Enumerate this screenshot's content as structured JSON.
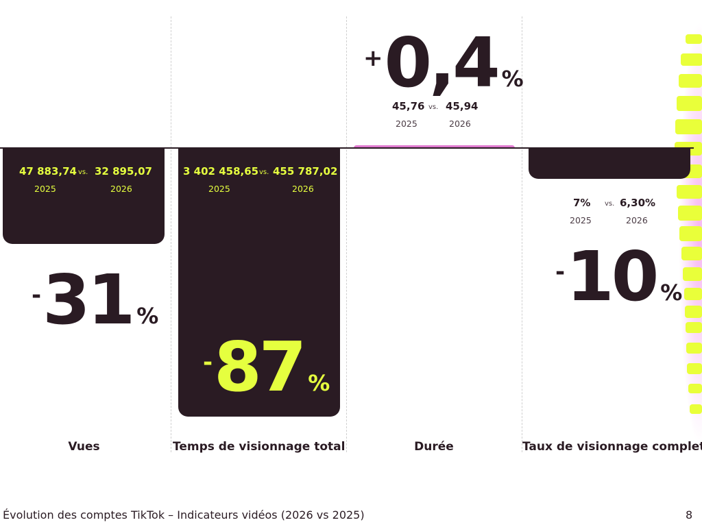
{
  "colors": {
    "dark": "#2a1b23",
    "accent_yellow": "#e5ff3f",
    "accent_pink": "#e07ad0"
  },
  "chart_data": {
    "type": "bar",
    "categories": [
      "Vues",
      "Temps de visionnage total",
      "Durée",
      "Taux de visionnage complet"
    ],
    "changes": [
      {
        "sign": "-",
        "value": "31",
        "unit": "%"
      },
      {
        "sign": "-",
        "value": "87",
        "unit": "%"
      },
      {
        "sign": "+",
        "value": "0,4",
        "unit": "%"
      },
      {
        "sign": "-",
        "value": "10",
        "unit": "%"
      }
    ],
    "change_percent": [
      -31,
      -87,
      0.4,
      -10
    ],
    "comparisons": [
      {
        "v2025": "47 883,74",
        "v2026": "32 895,07"
      },
      {
        "v2025": "3 402 458,65",
        "v2026": "455 787,02"
      },
      {
        "v2025": "45,76",
        "v2026": "45,94"
      },
      {
        "v2025": "7%",
        "v2026": "6,30%"
      }
    ],
    "vs_label": "vs.",
    "year_labels": [
      "2025",
      "2026"
    ]
  },
  "footer": {
    "text": "Évolution des comptes TikTok – Indicateurs vidéos (2026 vs 2025)",
    "page_number": "8"
  }
}
